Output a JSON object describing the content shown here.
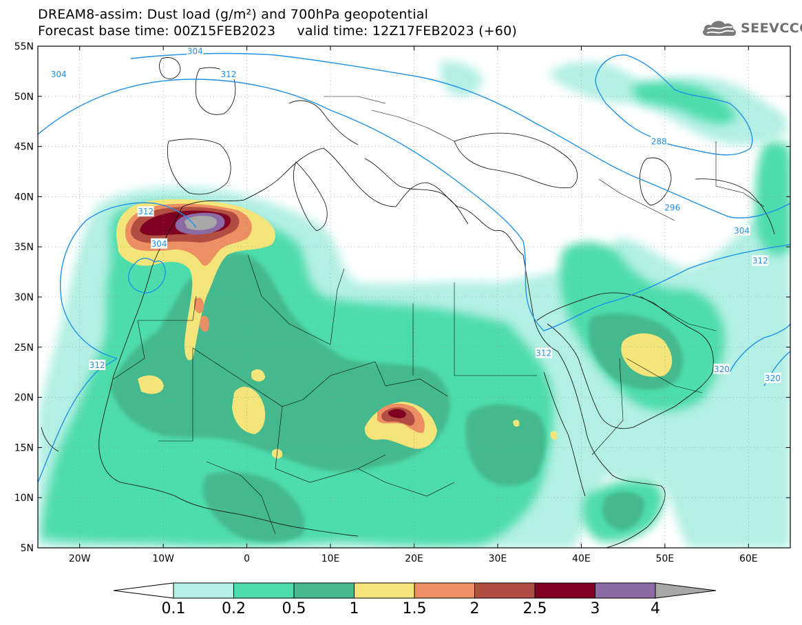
{
  "title_line1": "DREAM8-assim: Dust load (g/m²) and 700hPa geopotential",
  "title_line2": "Forecast base time: 00Z15FEB2023     valid time: 12Z17FEB2023 (+60)",
  "logo": {
    "text": "SEEVCCC",
    "icon": "cloud-icon"
  },
  "map": {
    "lon_range": [
      -25,
      65
    ],
    "lat_range": [
      5,
      55
    ],
    "lat_ticks": [
      "55N",
      "50N",
      "45N",
      "40N",
      "35N",
      "30N",
      "25N",
      "20N",
      "15N",
      "10N",
      "5N"
    ],
    "lat_values": [
      55,
      50,
      45,
      40,
      35,
      30,
      25,
      20,
      15,
      10,
      5
    ],
    "lon_ticks": [
      "20W",
      "10W",
      "0",
      "10E",
      "20E",
      "30E",
      "40E",
      "50E",
      "60E"
    ],
    "lon_values": [
      -20,
      -10,
      0,
      10,
      20,
      30,
      40,
      50,
      60
    ],
    "grid": true
  },
  "contour_labels": [
    {
      "text": "304",
      "lon": -22.5,
      "lat": 52.2
    },
    {
      "text": "304",
      "lon": -6.2,
      "lat": 54.5
    },
    {
      "text": "312",
      "lon": -2.2,
      "lat": 52.2
    },
    {
      "text": "312",
      "lon": -12.1,
      "lat": 38.5
    },
    {
      "text": "304",
      "lon": -10.5,
      "lat": 35.3
    },
    {
      "text": "312",
      "lon": -17.9,
      "lat": 23.2
    },
    {
      "text": "288",
      "lon": 49.3,
      "lat": 45.5
    },
    {
      "text": "296",
      "lon": 50.9,
      "lat": 38.9
    },
    {
      "text": "304",
      "lon": 59.2,
      "lat": 36.6
    },
    {
      "text": "312",
      "lon": 61.4,
      "lat": 33.6
    },
    {
      "text": "312",
      "lon": 35.5,
      "lat": 24.4
    },
    {
      "text": "320",
      "lon": 56.8,
      "lat": 22.8
    },
    {
      "text": "320",
      "lon": 62.9,
      "lat": 21.9
    }
  ],
  "colorbar": {
    "labels": [
      "0.1",
      "0.2",
      "0.5",
      "1",
      "1.5",
      "2",
      "2.5",
      "3",
      "4"
    ],
    "colors": [
      "#b3efe4",
      "#4ddcab",
      "#45b98e",
      "#f3e57a",
      "#ec8f63",
      "#b24d42",
      "#800024",
      "#8c6aa3"
    ],
    "end_colors": [
      "#ffffff",
      "#a8a8a8"
    ]
  },
  "colors": {
    "contour": "#1e90e8",
    "coast": "#000000"
  }
}
